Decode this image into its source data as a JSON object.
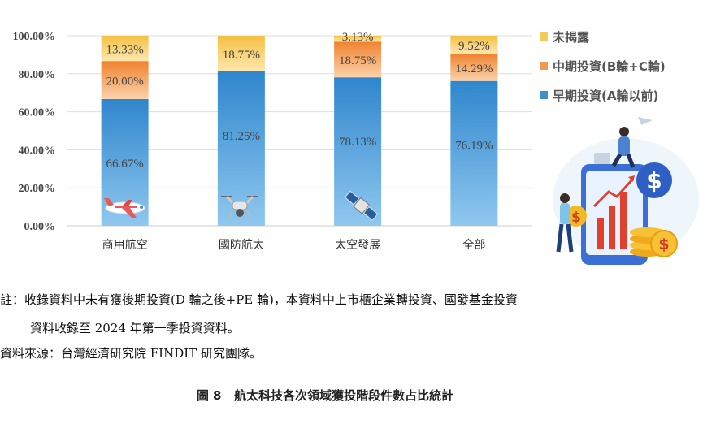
{
  "chart_data": {
    "type": "bar",
    "stacked": true,
    "categories": [
      "商用航空",
      "國防航太",
      "太空發展",
      "全部"
    ],
    "series": [
      {
        "name": "早期投資(A輪以前)",
        "color": "#3d8fd0",
        "values": [
          66.67,
          81.25,
          78.13,
          76.19
        ],
        "labels": [
          "66.67%",
          "81.25%",
          "78.13%",
          "76.19%"
        ]
      },
      {
        "name": "中期投資(B輪+C輪)",
        "color": "#f39a4c",
        "values": [
          20.0,
          0,
          18.75,
          14.29
        ],
        "labels": [
          "20.00%",
          "",
          "18.75%",
          "14.29%"
        ]
      },
      {
        "name": "未揭露",
        "color": "#f7c95a",
        "values": [
          13.33,
          18.75,
          3.13,
          9.52
        ],
        "labels": [
          "13.33%",
          "18.75%",
          "3.13%",
          "9.52%"
        ]
      }
    ],
    "yticks": [
      "0.00%",
      "20.00%",
      "40.00%",
      "60.00%",
      "80.00%",
      "100.00%"
    ],
    "ylim": [
      0,
      100
    ],
    "grid": true,
    "legend_position": "right"
  },
  "notes": {
    "line1": "註：收錄資料中未有獲後期投資(D 輪之後+PE 輪)，本資料中上市櫃企業轉投資、國發基金投資",
    "line2": "資料收錄至 2024 年第一季投資資料。",
    "source": "資料來源：台灣經濟研究院 FINDIT 研究團隊。"
  },
  "caption": "圖 8   航太科技各次領域獲投階段件數占比統計",
  "illustration": {
    "dollar_symbol": "$"
  }
}
